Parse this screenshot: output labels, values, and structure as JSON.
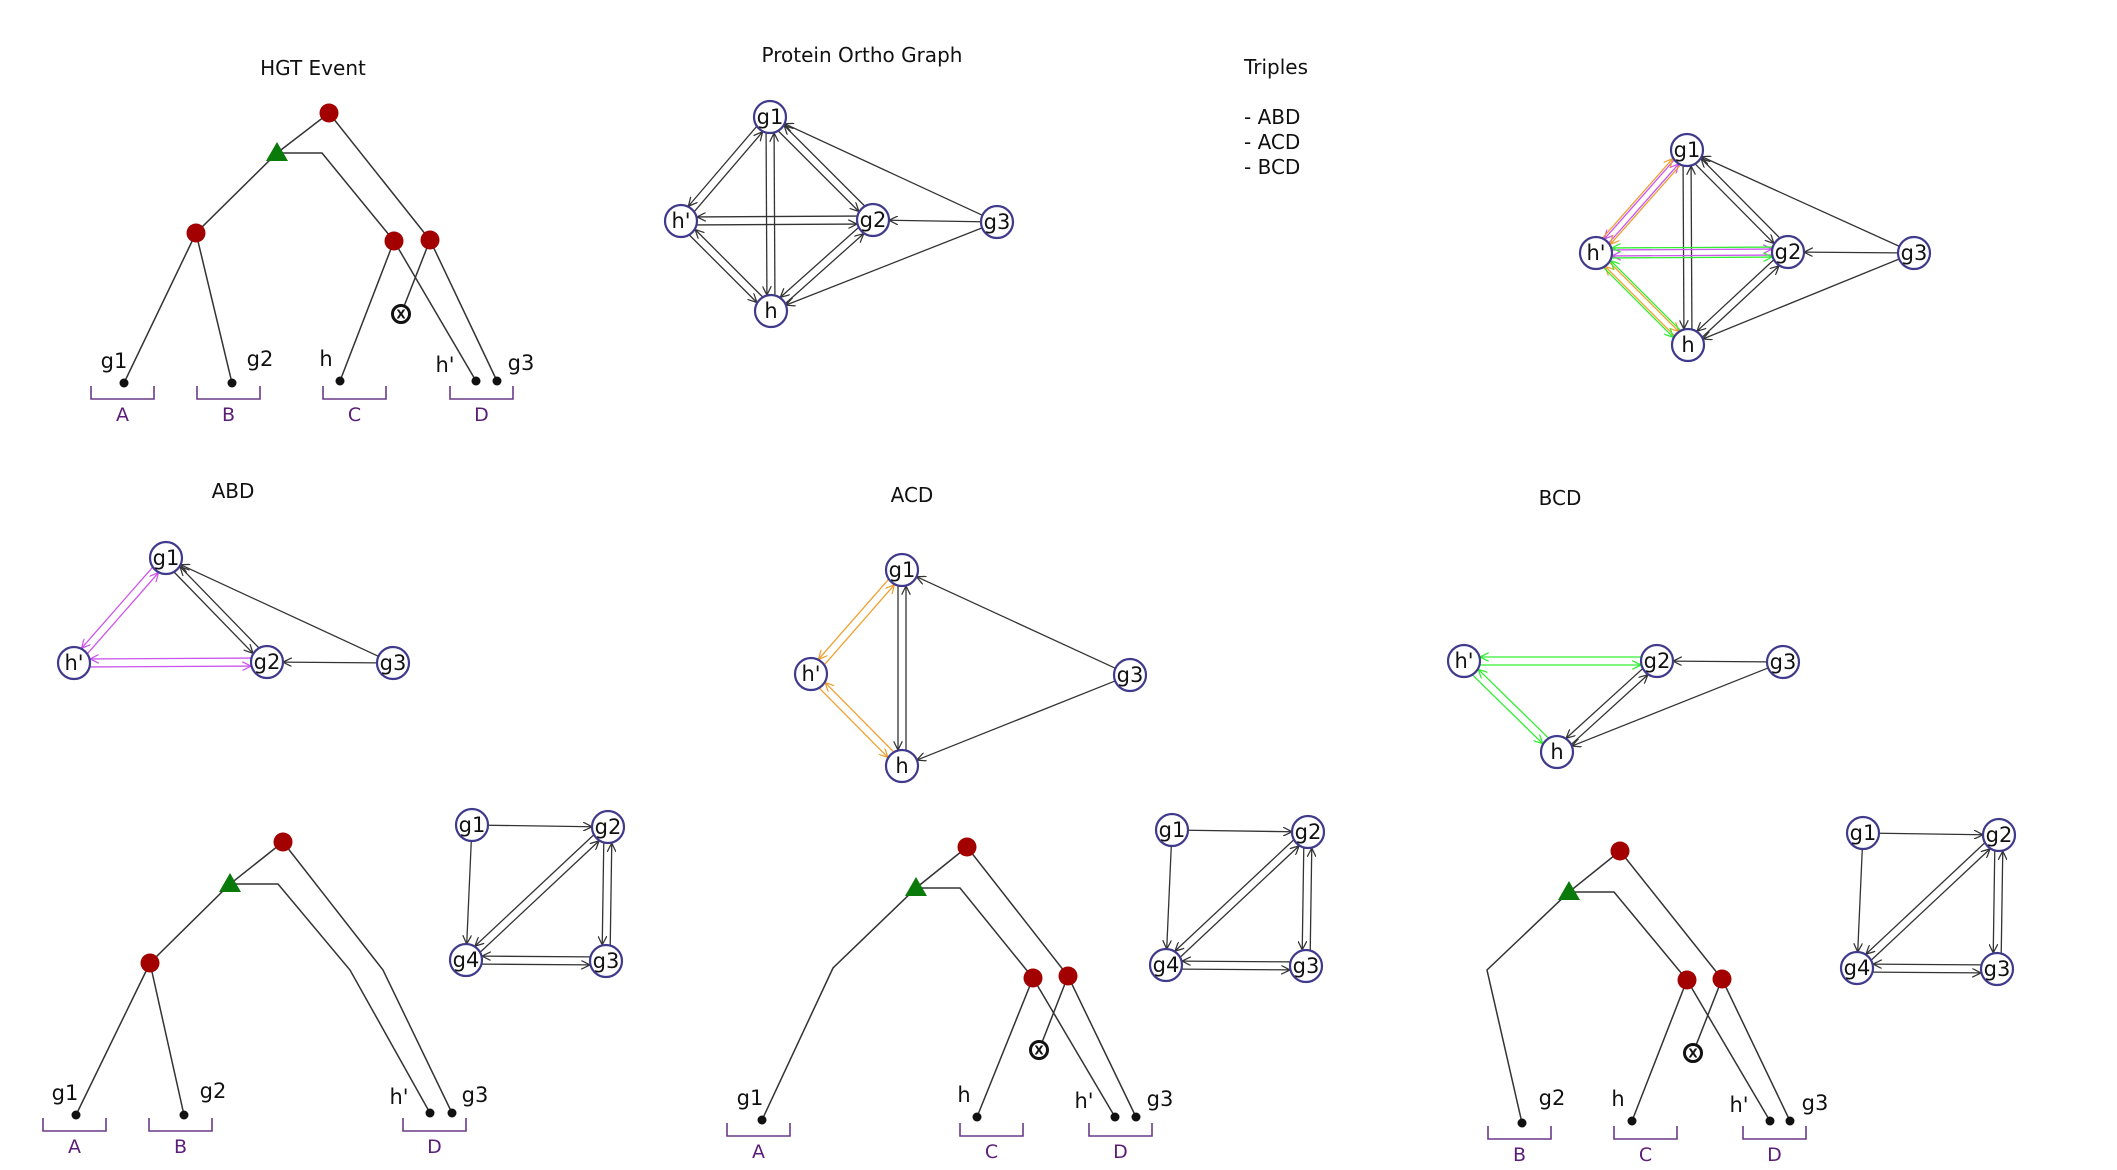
{
  "titles": {
    "hgt": "HGT Event",
    "ortho": "Protein Ortho Graph",
    "triples": "Triples",
    "abd": "ABD",
    "acd": "ACD",
    "bcd": "BCD"
  },
  "triples_list": [
    "- ABD",
    "- ACD",
    "- BCD"
  ],
  "genes": {
    "g1": "g1",
    "g2": "g2",
    "g3": "g3",
    "g4": "g4",
    "h": "h",
    "hp": "h'"
  },
  "species": {
    "A": "A",
    "B": "B",
    "C": "C",
    "D": "D"
  },
  "loss_symbol": "X",
  "colors": {
    "speciation": "#a30000",
    "hgt": "#0a7a0a",
    "node_border": "#3f3a8c",
    "species_label": "#5a1e78",
    "triple_abd": "#cc55ee",
    "triple_acd": "#f0a030",
    "triple_bcd": "#33ee33",
    "edge": "#333333"
  }
}
